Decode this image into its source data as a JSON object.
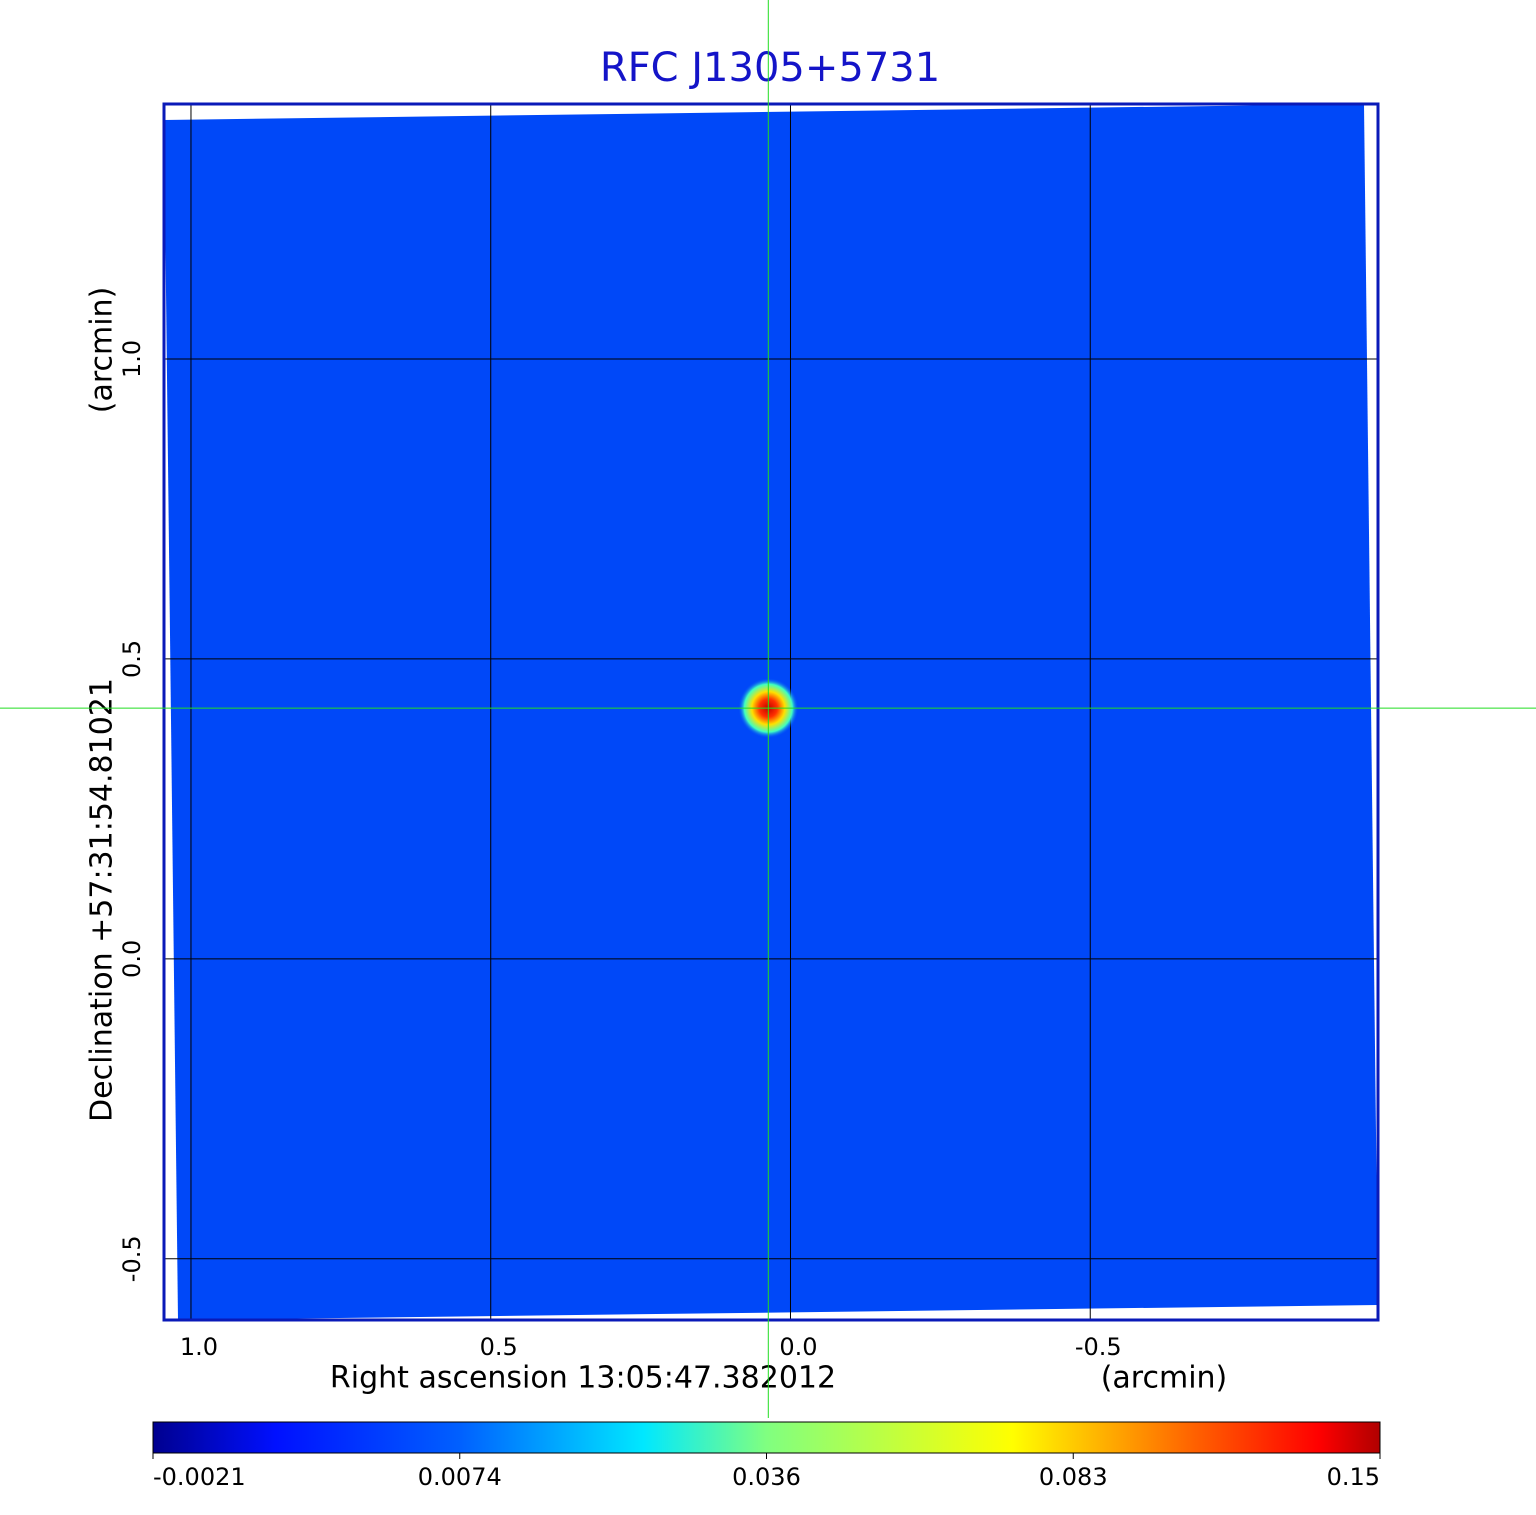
{
  "chart_data": {
    "type": "image",
    "title": "RFC J1305+5731",
    "x_label": "Right ascension  13:05:47.382012",
    "x_unit": "(arcmin)",
    "y_label": "Declination  +57:31:54.81021",
    "y_unit": "(arcmin)",
    "xlim": [
      1.045,
      -0.98
    ],
    "ylim": [
      -0.602,
      1.425
    ],
    "xticks": [
      {
        "value": 1,
        "label": "1.0"
      },
      0.5,
      {
        "value": 0,
        "label": "0.0"
      },
      -0.5
    ],
    "yticks": [
      {
        "value": -0.5,
        "label": "-0.5"
      },
      {
        "value": 0,
        "label": "0.0"
      },
      0.5,
      {
        "value": 1,
        "label": "1.0"
      }
    ],
    "grid": true,
    "source": {
      "x": 0.037,
      "y": 0.418,
      "value": 0.15
    },
    "colorbar_ticks": [
      -0.0021,
      0.0074,
      0.036,
      0.083,
      0.15
    ]
  }
}
